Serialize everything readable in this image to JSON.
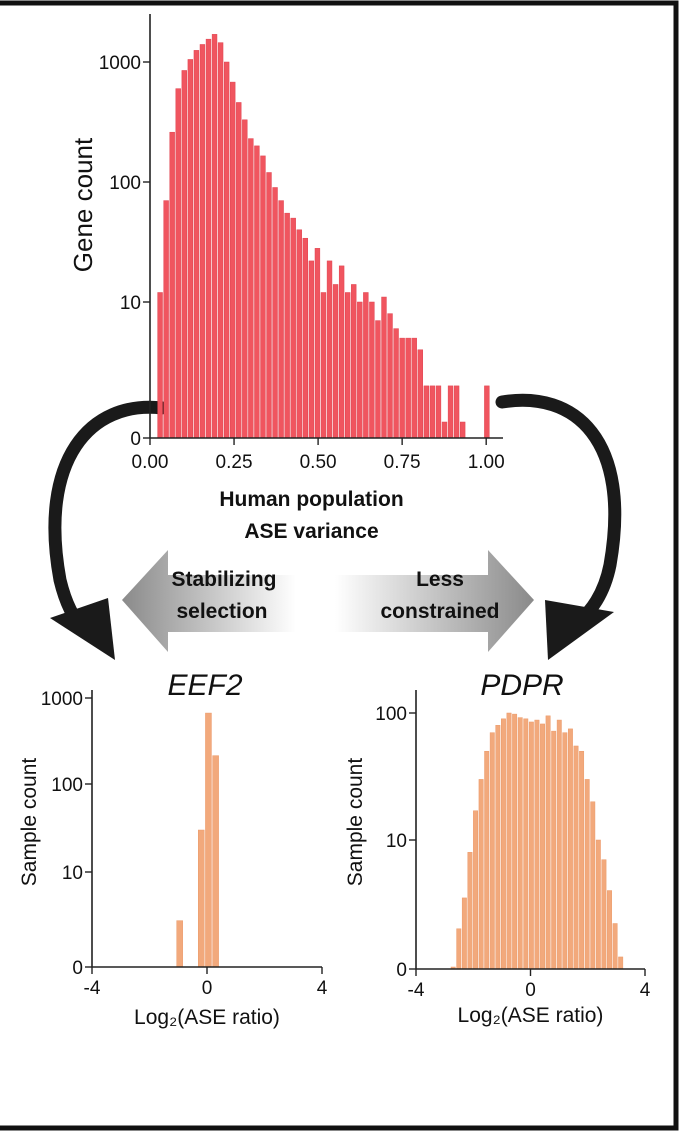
{
  "colors": {
    "main_bars": "#f0555f",
    "main_bars_edge": "#e04450",
    "sub_bars": "#f2a97c",
    "axis": "#222222",
    "arrow": "#1a1a1a",
    "frame": "#111111",
    "gradient_dark": "#8a8a8a",
    "gradient_light": "#ffffff"
  },
  "arrows": {
    "left_label": [
      "Stabilizing",
      "selection"
    ],
    "right_label": [
      "Less",
      "constrained"
    ]
  },
  "chart_data": [
    {
      "type": "bar",
      "id": "main",
      "xlabel_lines": [
        "Human population",
        "ASE variance"
      ],
      "ylabel": "Gene count",
      "yscale": "log",
      "xlim": [
        0,
        1.05
      ],
      "x_ticks": [
        "0.00",
        "0.25",
        "0.50",
        "0.75",
        "1.00"
      ],
      "x_tick_values": [
        0,
        0.25,
        0.5,
        0.75,
        1.0
      ],
      "y_ticks": [
        "0",
        "10",
        "100",
        "1000"
      ],
      "y_tick_values": [
        0,
        10,
        100,
        1000
      ],
      "bin_width": 0.018,
      "x": [
        0.03,
        0.048,
        0.066,
        0.084,
        0.102,
        0.12,
        0.138,
        0.156,
        0.174,
        0.192,
        0.21,
        0.228,
        0.246,
        0.264,
        0.282,
        0.3,
        0.318,
        0.336,
        0.354,
        0.372,
        0.39,
        0.408,
        0.426,
        0.444,
        0.462,
        0.48,
        0.498,
        0.516,
        0.534,
        0.552,
        0.57,
        0.588,
        0.606,
        0.624,
        0.642,
        0.66,
        0.678,
        0.696,
        0.714,
        0.732,
        0.75,
        0.768,
        0.786,
        0.804,
        0.822,
        0.84,
        0.858,
        0.876,
        0.894,
        0.912,
        0.93,
        0.948,
        0.966,
        0.984,
        1.002
      ],
      "values": [
        12,
        70,
        260,
        600,
        850,
        1050,
        1250,
        1400,
        1550,
        1700,
        1450,
        1000,
        680,
        460,
        330,
        230,
        200,
        165,
        120,
        90,
        70,
        55,
        50,
        40,
        34,
        22,
        28,
        12,
        22,
        14,
        20,
        12,
        14,
        10,
        12,
        10,
        7,
        11,
        8,
        6,
        5,
        5,
        5,
        4,
        2,
        2,
        2,
        1,
        2,
        2,
        1,
        0.6,
        0.6,
        0.6,
        2
      ]
    },
    {
      "type": "bar",
      "id": "eef2",
      "title": "EEF2",
      "xlabel": "Log₂(ASE ratio)",
      "ylabel": "Sample count",
      "yscale": "log",
      "xlim": [
        -4,
        4
      ],
      "x_ticks": [
        "-4",
        "0",
        "4"
      ],
      "x_tick_values": [
        -4,
        0,
        4
      ],
      "y_ticks": [
        "0",
        "10",
        "100",
        "1000"
      ],
      "y_tick_values": [
        0,
        10,
        100,
        1000
      ],
      "bin_width": 0.25,
      "x": [
        -0.95,
        -0.45,
        -0.2,
        0.05,
        0.3,
        1.05
      ],
      "values": [
        2.8,
        0.5,
        30,
        640,
        210,
        0.4
      ]
    },
    {
      "type": "bar",
      "id": "pdpr",
      "title": "PDPR",
      "xlabel": "Log₂(ASE ratio)",
      "ylabel": "Sample count",
      "yscale": "log",
      "xlim": [
        -4,
        4
      ],
      "x_ticks": [
        "-4",
        "0",
        "4"
      ],
      "x_tick_values": [
        -4,
        0,
        4
      ],
      "y_ticks": [
        "0",
        "10",
        "100"
      ],
      "y_tick_values": [
        0,
        10,
        100
      ],
      "bin_width": 0.195,
      "x": [
        -2.7,
        -2.505,
        -2.31,
        -2.115,
        -1.92,
        -1.725,
        -1.53,
        -1.335,
        -1.14,
        -0.945,
        -0.75,
        -0.555,
        -0.36,
        -0.165,
        0.03,
        0.225,
        0.42,
        0.615,
        0.81,
        1.005,
        1.2,
        1.395,
        1.59,
        1.785,
        1.98,
        2.175,
        2.37,
        2.565,
        2.76,
        2.955,
        3.15
      ],
      "values": [
        1,
        2,
        3.5,
        8,
        17,
        30,
        50,
        70,
        80,
        90,
        100,
        98,
        92,
        90,
        85,
        88,
        82,
        95,
        72,
        88,
        70,
        75,
        55,
        50,
        30,
        20,
        10,
        7,
        4,
        2.2,
        1.2
      ]
    }
  ]
}
